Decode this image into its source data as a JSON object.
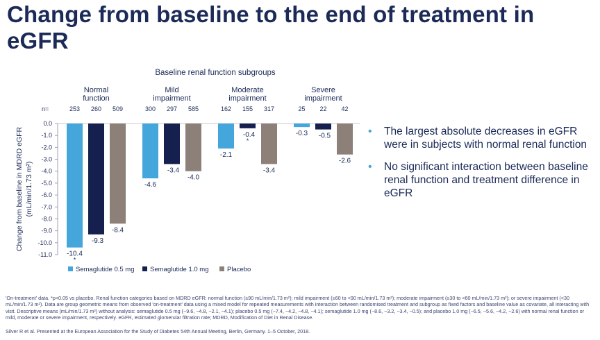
{
  "title": "Change from baseline to the end of treatment in eGFR",
  "colors": {
    "sema05": "#45a6dc",
    "sema10": "#15204f",
    "placebo": "#8d8078",
    "text": "#1b2a57",
    "accent": "#4aa3d9"
  },
  "chart_data": {
    "type": "bar",
    "title": "Baseline renal function subgroups",
    "n_label": "n=",
    "categories": [
      {
        "lines": [
          "Normal",
          "function"
        ],
        "n": [
          253,
          260,
          509
        ]
      },
      {
        "lines": [
          "Mild",
          "impairment"
        ],
        "n": [
          300,
          297,
          585
        ]
      },
      {
        "lines": [
          "Moderate",
          "impairment"
        ],
        "n": [
          162,
          155,
          317
        ]
      },
      {
        "lines": [
          "Severe",
          "impairment"
        ],
        "n": [
          25,
          22,
          42
        ]
      }
    ],
    "series": [
      {
        "name": "Semaglutide 0.5 mg",
        "values": [
          -10.4,
          -4.6,
          -2.1,
          -0.3
        ],
        "labels": [
          "-10.4",
          "-4.6",
          "-2.1",
          "-0.3"
        ],
        "significant": [
          true,
          false,
          false,
          false
        ]
      },
      {
        "name": "Semaglutide 1.0 mg",
        "values": [
          -9.3,
          -3.4,
          -0.4,
          -0.5
        ],
        "labels": [
          "-9.3",
          "-3.4",
          "-0.4",
          "-0.5"
        ],
        "significant": [
          false,
          false,
          true,
          false
        ]
      },
      {
        "name": "Placebo",
        "values": [
          -8.4,
          -4.0,
          -3.4,
          -2.6
        ],
        "labels": [
          "-8.4",
          "-4.0",
          "-3.4",
          "-2.6"
        ],
        "significant": [
          false,
          false,
          false,
          false
        ]
      }
    ],
    "significance_marker": "*",
    "ylabel_lines": [
      "Change from baseline in MDRD eGFR",
      "(mL/min/1.73 m²)"
    ],
    "ylim": [
      -11.0,
      0.0
    ],
    "yticks": [
      "0.0",
      "-1.0",
      "-2.0",
      "-3.0",
      "-4.0",
      "-5.0",
      "-6.0",
      "-7.0",
      "-8.0",
      "-9.0",
      "-10.0",
      "-11.0"
    ],
    "legend_position": "bottom"
  },
  "bullets": [
    "The largest absolute decreases in eGFR were in subjects with normal renal function",
    "No significant interaction between baseline renal function and treatment difference in eGFR"
  ],
  "footnote": "'On-treatment' data. *p<0.05 vs placebo. Renal function categories based on MDRD eGFR: normal function (≥90 mL/min/1.73 m²); mild impairment (≥60 to <90 mL/min/1.73 m²); moderate impairment (≥30 to <60 mL/min/1.73 m²); or severe impairment (<30 mL/min/1.73 m²). Data are group geometric means from observed 'on-treatment' data using a mixed model for repeated measurements with interaction between randomised treatment and subgroup as fixed factors and baseline value as covariate, all interacting with visit. Descriptive means (mL/min/1.73 m²) without analysis: semaglutide 0.5 mg (−9.6, −4.8, −2.1, −4.1); placebo 0.5 mg (−7.4, −4.2, −4.8, −4.1); semaglutide 1.0 mg (−8.6, −3.2, −3.4, −0.5); and placebo 1.0 mg (−6.5, −5.6, −4.2, −2.6) with normal renal function or mild, moderate or severe impairment, respectively. eGFR, estimated glomerular filtration rate; MDRD, Modification of Diet in Renal Disease.",
  "citation": "Silver R et al. Presented at the European Association for the Study of Diabetes 54th Annual Meeting, Berlin, Germany. 1–5 October, 2018."
}
